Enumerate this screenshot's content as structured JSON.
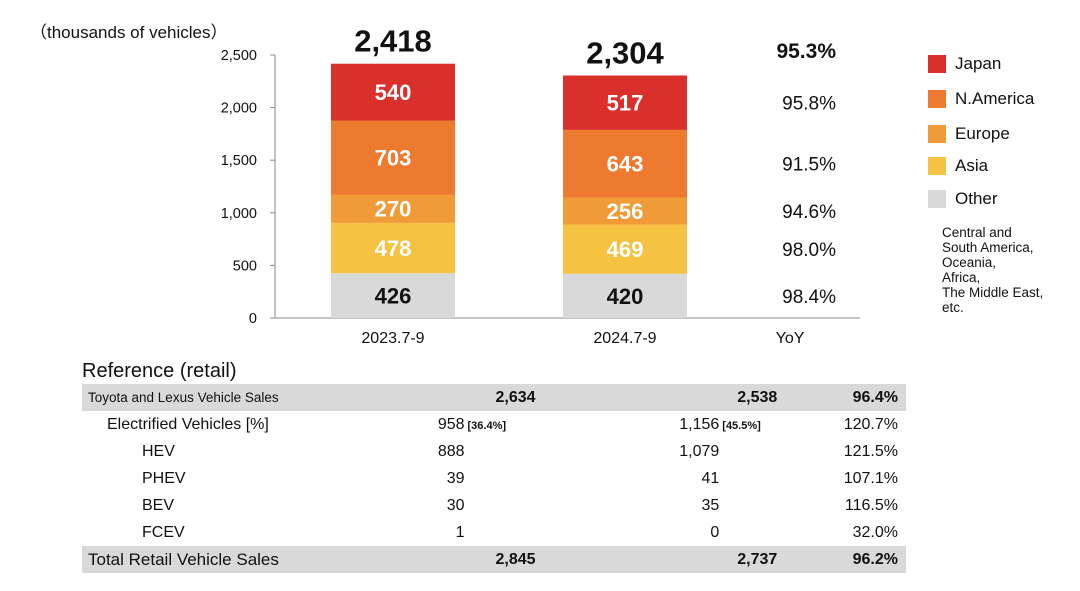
{
  "chart_data": {
    "type": "bar",
    "stacked": true,
    "unit_label": "（thousands of vehicles）",
    "categories": [
      "2023.7-9",
      "2024.7-9"
    ],
    "series": [
      {
        "name": "Other",
        "values": [
          426,
          420
        ],
        "yoy": "98.4%",
        "color": "#d9d9d9"
      },
      {
        "name": "Asia",
        "values": [
          478,
          469
        ],
        "yoy": "98.0%",
        "color": "#f5c242"
      },
      {
        "name": "Europe",
        "values": [
          270,
          256
        ],
        "yoy": "94.6%",
        "color": "#f19a38"
      },
      {
        "name": "N.America",
        "values": [
          703,
          643
        ],
        "yoy": "91.5%",
        "color": "#ee7a30"
      },
      {
        "name": "Japan",
        "values": [
          540,
          517
        ],
        "yoy": "95.8%",
        "color": "#d9302c"
      }
    ],
    "totals": [
      "2,418",
      "2,304"
    ],
    "total_yoy": "95.3%",
    "yoy_label": "YoY",
    "ylim": [
      0,
      2500
    ],
    "yticks": [
      0,
      500,
      1000,
      1500,
      2000,
      2500
    ],
    "ytick_labels": [
      "0",
      "500",
      "1,000",
      "1,500",
      "2,000",
      "2,500"
    ],
    "legend_position": "right"
  },
  "legend": {
    "items": [
      {
        "label": "Japan",
        "color": "#d9302c"
      },
      {
        "label": "N.America",
        "color": "#ee7a30"
      },
      {
        "label": "Europe",
        "color": "#f19a38"
      },
      {
        "label": "Asia",
        "color": "#f5c242"
      },
      {
        "label": "Other",
        "color": "#d9d9d9"
      }
    ],
    "other_note": "Central and\nSouth America,\nOceania,\nAfrica,\nThe Middle East,\n etc."
  },
  "reference": {
    "title": "Reference (retail)",
    "rows": [
      {
        "label": "Toyota and Lexus Vehicle Sales",
        "v1": "2,634",
        "v2": "2,538",
        "v3": "96.4%"
      },
      {
        "label": "Electrified Vehicles [%]",
        "v1": "958",
        "v1_share": "[36.4%]",
        "v2": "1,156",
        "v2_share": "[45.5%]",
        "v3": "120.7%"
      },
      {
        "label": "HEV",
        "v1": "888",
        "v2": "1,079",
        "v3": "121.5%"
      },
      {
        "label": "PHEV",
        "v1": "39",
        "v2": "41",
        "v3": "107.1%"
      },
      {
        "label": "BEV",
        "v1": "30",
        "v2": "35",
        "v3": "116.5%"
      },
      {
        "label": "FCEV",
        "v1": "1",
        "v2": "0",
        "v3": "32.0%"
      },
      {
        "label": "Total Retail Vehicle Sales",
        "v1": "2,845",
        "v2": "2,737",
        "v3": "96.2%"
      }
    ]
  }
}
